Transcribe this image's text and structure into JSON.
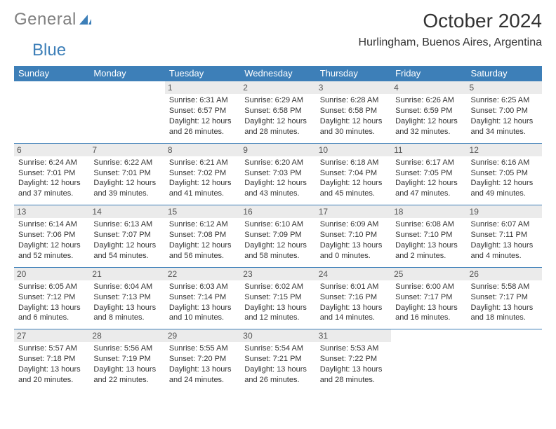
{
  "logo": {
    "general": "General",
    "blue": "Blue"
  },
  "title": "October 2024",
  "location": "Hurlingham, Buenos Aires, Argentina",
  "colors": {
    "header_blue": "#3d7fb8",
    "daynum_bg": "#ebebeb",
    "text": "#333333",
    "logo_gray": "#808080"
  },
  "daysOfWeek": [
    "Sunday",
    "Monday",
    "Tuesday",
    "Wednesday",
    "Thursday",
    "Friday",
    "Saturday"
  ],
  "weeks": [
    [
      {
        "n": "",
        "sr": "",
        "ss": "",
        "dl": ""
      },
      {
        "n": "",
        "sr": "",
        "ss": "",
        "dl": ""
      },
      {
        "n": "1",
        "sr": "6:31 AM",
        "ss": "6:57 PM",
        "dl": "12 hours and 26 minutes."
      },
      {
        "n": "2",
        "sr": "6:29 AM",
        "ss": "6:58 PM",
        "dl": "12 hours and 28 minutes."
      },
      {
        "n": "3",
        "sr": "6:28 AM",
        "ss": "6:58 PM",
        "dl": "12 hours and 30 minutes."
      },
      {
        "n": "4",
        "sr": "6:26 AM",
        "ss": "6:59 PM",
        "dl": "12 hours and 32 minutes."
      },
      {
        "n": "5",
        "sr": "6:25 AM",
        "ss": "7:00 PM",
        "dl": "12 hours and 34 minutes."
      }
    ],
    [
      {
        "n": "6",
        "sr": "6:24 AM",
        "ss": "7:01 PM",
        "dl": "12 hours and 37 minutes."
      },
      {
        "n": "7",
        "sr": "6:22 AM",
        "ss": "7:01 PM",
        "dl": "12 hours and 39 minutes."
      },
      {
        "n": "8",
        "sr": "6:21 AM",
        "ss": "7:02 PM",
        "dl": "12 hours and 41 minutes."
      },
      {
        "n": "9",
        "sr": "6:20 AM",
        "ss": "7:03 PM",
        "dl": "12 hours and 43 minutes."
      },
      {
        "n": "10",
        "sr": "6:18 AM",
        "ss": "7:04 PM",
        "dl": "12 hours and 45 minutes."
      },
      {
        "n": "11",
        "sr": "6:17 AM",
        "ss": "7:05 PM",
        "dl": "12 hours and 47 minutes."
      },
      {
        "n": "12",
        "sr": "6:16 AM",
        "ss": "7:05 PM",
        "dl": "12 hours and 49 minutes."
      }
    ],
    [
      {
        "n": "13",
        "sr": "6:14 AM",
        "ss": "7:06 PM",
        "dl": "12 hours and 52 minutes."
      },
      {
        "n": "14",
        "sr": "6:13 AM",
        "ss": "7:07 PM",
        "dl": "12 hours and 54 minutes."
      },
      {
        "n": "15",
        "sr": "6:12 AM",
        "ss": "7:08 PM",
        "dl": "12 hours and 56 minutes."
      },
      {
        "n": "16",
        "sr": "6:10 AM",
        "ss": "7:09 PM",
        "dl": "12 hours and 58 minutes."
      },
      {
        "n": "17",
        "sr": "6:09 AM",
        "ss": "7:10 PM",
        "dl": "13 hours and 0 minutes."
      },
      {
        "n": "18",
        "sr": "6:08 AM",
        "ss": "7:10 PM",
        "dl": "13 hours and 2 minutes."
      },
      {
        "n": "19",
        "sr": "6:07 AM",
        "ss": "7:11 PM",
        "dl": "13 hours and 4 minutes."
      }
    ],
    [
      {
        "n": "20",
        "sr": "6:05 AM",
        "ss": "7:12 PM",
        "dl": "13 hours and 6 minutes."
      },
      {
        "n": "21",
        "sr": "6:04 AM",
        "ss": "7:13 PM",
        "dl": "13 hours and 8 minutes."
      },
      {
        "n": "22",
        "sr": "6:03 AM",
        "ss": "7:14 PM",
        "dl": "13 hours and 10 minutes."
      },
      {
        "n": "23",
        "sr": "6:02 AM",
        "ss": "7:15 PM",
        "dl": "13 hours and 12 minutes."
      },
      {
        "n": "24",
        "sr": "6:01 AM",
        "ss": "7:16 PM",
        "dl": "13 hours and 14 minutes."
      },
      {
        "n": "25",
        "sr": "6:00 AM",
        "ss": "7:17 PM",
        "dl": "13 hours and 16 minutes."
      },
      {
        "n": "26",
        "sr": "5:58 AM",
        "ss": "7:17 PM",
        "dl": "13 hours and 18 minutes."
      }
    ],
    [
      {
        "n": "27",
        "sr": "5:57 AM",
        "ss": "7:18 PM",
        "dl": "13 hours and 20 minutes."
      },
      {
        "n": "28",
        "sr": "5:56 AM",
        "ss": "7:19 PM",
        "dl": "13 hours and 22 minutes."
      },
      {
        "n": "29",
        "sr": "5:55 AM",
        "ss": "7:20 PM",
        "dl": "13 hours and 24 minutes."
      },
      {
        "n": "30",
        "sr": "5:54 AM",
        "ss": "7:21 PM",
        "dl": "13 hours and 26 minutes."
      },
      {
        "n": "31",
        "sr": "5:53 AM",
        "ss": "7:22 PM",
        "dl": "13 hours and 28 minutes."
      },
      {
        "n": "",
        "sr": "",
        "ss": "",
        "dl": ""
      },
      {
        "n": "",
        "sr": "",
        "ss": "",
        "dl": ""
      }
    ]
  ],
  "labels": {
    "sunrise": "Sunrise: ",
    "sunset": "Sunset: ",
    "daylight": "Daylight: "
  }
}
